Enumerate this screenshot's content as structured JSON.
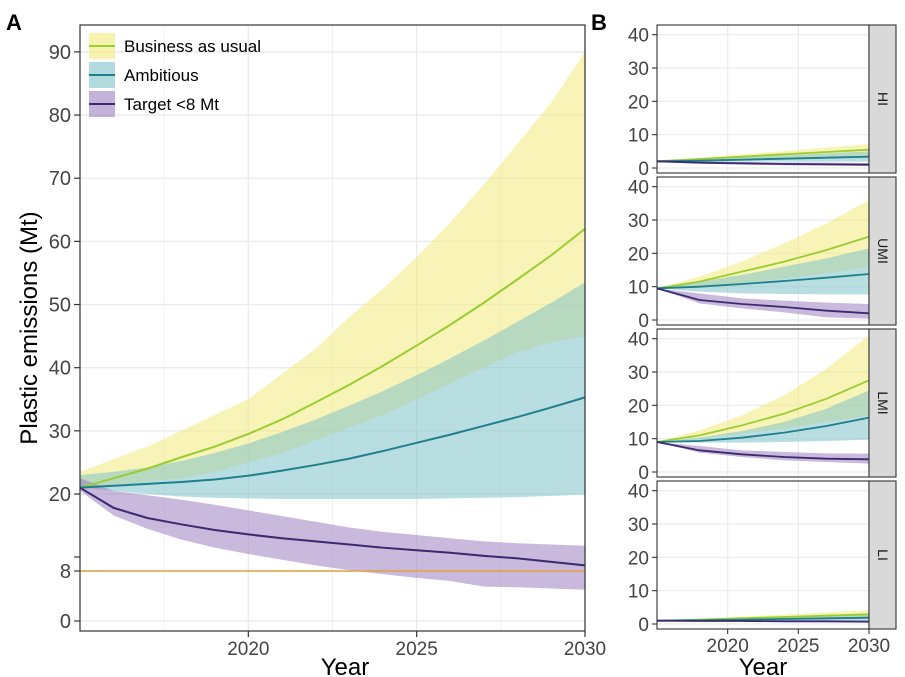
{
  "figure": {
    "panel_a_label": "A",
    "panel_b_label": "B"
  },
  "colors": {
    "bau_line": "#9ACD32",
    "bau_band": "#F3EA7A",
    "amb_line": "#1F7F8C",
    "amb_band": "#7FC3C9",
    "tgt_line": "#3B2A70",
    "tgt_band": "#9C80BF",
    "ref_line": "#E8A040",
    "strip_bg": "#D9D9D9",
    "grid": "#EBEBEB"
  },
  "chart_data": [
    {
      "type": "area",
      "panel": "A",
      "xlabel": "Year",
      "ylabel": "Plastic emissions (Mt)",
      "xlim": [
        2015,
        2030
      ],
      "ylim": [
        0,
        95
      ],
      "xticks": [
        2020,
        2025,
        2030
      ],
      "yticks": [
        0,
        8,
        20,
        30,
        40,
        50,
        60,
        70,
        80,
        90
      ],
      "y_scale": "broken: 0–8 compressed below break near 10",
      "grid": true,
      "legend_position": "top-left",
      "reference_line": {
        "y": 8
      },
      "x": [
        2015,
        2016,
        2017,
        2018,
        2019,
        2020,
        2021,
        2022,
        2023,
        2024,
        2025,
        2026,
        2027,
        2028,
        2029,
        2030
      ],
      "series": [
        {
          "name": "Business as usual",
          "color_key": "bau",
          "values": [
            21,
            22.5,
            24,
            25.8,
            27.5,
            29.5,
            31.8,
            34.5,
            37.3,
            40.3,
            43.5,
            46.8,
            50.3,
            54,
            57.8,
            62
          ],
          "lower": [
            21,
            21.5,
            22,
            22.5,
            23.5,
            25,
            26.5,
            28.5,
            30.5,
            32.5,
            35,
            37.5,
            40,
            42.5,
            44,
            45
          ],
          "upper": [
            23.5,
            25.5,
            27.5,
            30,
            32.5,
            35,
            39,
            43,
            48,
            52.5,
            57.5,
            63,
            69,
            75.5,
            82,
            90
          ]
        },
        {
          "name": "Ambitious",
          "color_key": "amb",
          "values": [
            21,
            21.3,
            21.6,
            21.9,
            22.3,
            22.9,
            23.7,
            24.6,
            25.6,
            26.8,
            28.1,
            29.4,
            30.8,
            32.2,
            33.7,
            35.3
          ],
          "lower": [
            21,
            20.5,
            20,
            19.6,
            19.4,
            19.3,
            19.2,
            19.2,
            19.2,
            19.2,
            19.2,
            19.3,
            19.4,
            19.5,
            19.7,
            19.9
          ],
          "upper": [
            23,
            23.5,
            24.2,
            25.2,
            26.5,
            28,
            29.8,
            31.8,
            34,
            36.3,
            38.8,
            41.5,
            44.3,
            47.3,
            50.3,
            53.5
          ]
        },
        {
          "name": "Target <8 Mt",
          "color_key": "tgt",
          "values": [
            21,
            17.8,
            16.2,
            15.2,
            14.3,
            13.6,
            13,
            12.5,
            12,
            11.5,
            11.1,
            10.7,
            10.2,
            9.8,
            9.3,
            8.8
          ],
          "lower": [
            20.5,
            16.6,
            14.5,
            12.8,
            11.5,
            10.5,
            9.6,
            8.8,
            8.1,
            7.5,
            6.9,
            6.4,
            5.5,
            5.4,
            5.2,
            5.0
          ],
          "upper": [
            22.5,
            20.5,
            19.8,
            19.1,
            18.3,
            17.4,
            16.5,
            15.6,
            14.7,
            14.0,
            13.5,
            13.0,
            12.5,
            12.2,
            12.0,
            11.8
          ]
        }
      ]
    },
    {
      "type": "area",
      "panel": "B",
      "xlabel": "Year",
      "xlim": [
        2015,
        2030
      ],
      "xticks": [
        2020,
        2025,
        2030
      ],
      "ylim": [
        0,
        42
      ],
      "yticks": [
        0,
        10,
        20,
        30,
        40
      ],
      "grid": true,
      "x": [
        2015,
        2018,
        2021,
        2024,
        2027,
        2030
      ],
      "facets": [
        {
          "label": "HI",
          "series": [
            {
              "color_key": "bau",
              "values": [
                2,
                2.7,
                3.4,
                4.1,
                4.8,
                5.5
              ],
              "lower": [
                2,
                2.3,
                2.7,
                3.0,
                3.4,
                3.8
              ],
              "upper": [
                2,
                3.1,
                4.1,
                5.1,
                6.1,
                7.2
              ]
            },
            {
              "color_key": "amb",
              "values": [
                2,
                2.2,
                2.5,
                2.8,
                3.1,
                3.4
              ],
              "lower": [
                2,
                1.9,
                1.9,
                1.9,
                1.9,
                1.9
              ],
              "upper": [
                2,
                2.6,
                3.2,
                3.8,
                4.4,
                5.0
              ]
            },
            {
              "color_key": "tgt",
              "values": [
                2,
                1.6,
                1.4,
                1.2,
                1.1,
                1.0
              ],
              "lower": [
                2,
                1.3,
                1.0,
                0.8,
                0.7,
                0.6
              ],
              "upper": [
                2,
                2.0,
                1.8,
                1.7,
                1.6,
                1.5
              ]
            }
          ]
        },
        {
          "label": "UMI",
          "series": [
            {
              "color_key": "bau",
              "values": [
                9.5,
                11.5,
                14.5,
                17.5,
                21,
                25
              ],
              "lower": [
                9.5,
                10,
                11,
                12.5,
                14,
                16
              ],
              "upper": [
                9.5,
                13,
                17.5,
                23,
                29,
                36
              ]
            },
            {
              "color_key": "amb",
              "values": [
                9.5,
                10,
                10.8,
                11.7,
                12.7,
                13.8
              ],
              "lower": [
                9.5,
                8.5,
                8,
                7.8,
                7.7,
                7.7
              ],
              "upper": [
                9.5,
                11.5,
                13.5,
                16,
                18.5,
                21.5
              ]
            },
            {
              "color_key": "tgt",
              "values": [
                9.5,
                6,
                4.8,
                3.9,
                2.8,
                2.0
              ],
              "lower": [
                9.5,
                5,
                3.5,
                2.3,
                0.8,
                0.4
              ],
              "upper": [
                9.5,
                8,
                6.5,
                5.8,
                5.2,
                4.8
              ]
            }
          ]
        },
        {
          "label": "LMI",
          "series": [
            {
              "color_key": "bau",
              "values": [
                9,
                11,
                14,
                17.5,
                22,
                27.5
              ],
              "lower": [
                9,
                10,
                11.5,
                13,
                15,
                17
              ],
              "upper": [
                9,
                12.5,
                17,
                23,
                31,
                41
              ]
            },
            {
              "color_key": "amb",
              "values": [
                9,
                9.3,
                10.3,
                11.8,
                13.8,
                16.3
              ],
              "lower": [
                9,
                8.8,
                8.8,
                9,
                9.3,
                9.7
              ],
              "upper": [
                9,
                10.3,
                12.3,
                15,
                19,
                24.5
              ]
            },
            {
              "color_key": "tgt",
              "values": [
                9,
                6.5,
                5.3,
                4.5,
                4,
                3.8
              ],
              "lower": [
                9,
                5.8,
                4.5,
                3.5,
                3,
                2.5
              ],
              "upper": [
                9,
                7.8,
                6.5,
                6.0,
                5.6,
                5.5
              ]
            }
          ]
        },
        {
          "label": "LI",
          "series": [
            {
              "color_key": "bau",
              "values": [
                1,
                1.3,
                1.7,
                2.1,
                2.5,
                2.9
              ],
              "lower": [
                1,
                1.1,
                1.3,
                1.5,
                1.7,
                1.9
              ],
              "upper": [
                1,
                1.6,
                2.2,
                2.8,
                3.5,
                4.2
              ]
            },
            {
              "color_key": "amb",
              "values": [
                1,
                1.1,
                1.3,
                1.5,
                1.7,
                1.9
              ],
              "lower": [
                1,
                1.0,
                1.0,
                1.0,
                1.0,
                1.0
              ],
              "upper": [
                1,
                1.3,
                1.7,
                2.1,
                2.5,
                2.9
              ]
            },
            {
              "color_key": "tgt",
              "values": [
                1,
                0.9,
                0.9,
                0.8,
                0.8,
                0.7
              ],
              "lower": [
                1,
                0.8,
                0.7,
                0.6,
                0.5,
                0.5
              ],
              "upper": [
                1,
                1.1,
                1.1,
                1.1,
                1.0,
                1.0
              ]
            }
          ]
        }
      ]
    }
  ]
}
